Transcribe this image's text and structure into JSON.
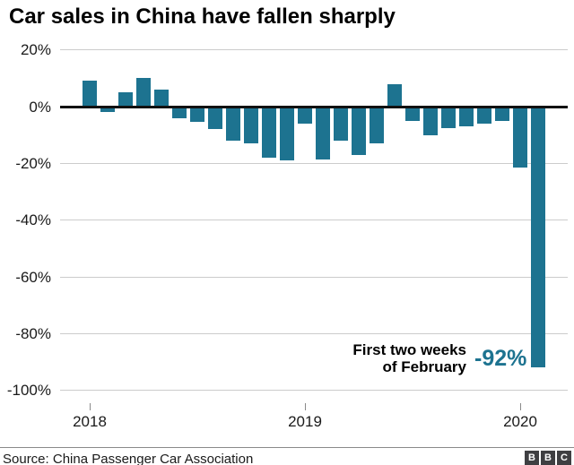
{
  "header": {
    "title": "Car sales in China have fallen sharply"
  },
  "chart_data": {
    "type": "bar",
    "title": "Car sales in China have fallen sharply",
    "unit": "percent year-on-year change",
    "bar_color": "#1d7390",
    "categories": [
      "Jan 2018",
      "Feb 2018",
      "Mar 2018",
      "Apr 2018",
      "May 2018",
      "Jun 2018",
      "Jul 2018",
      "Aug 2018",
      "Sep 2018",
      "Oct 2018",
      "Nov 2018",
      "Dec 2018",
      "Jan 2019",
      "Feb 2019",
      "Mar 2019",
      "Apr 2019",
      "May 2019",
      "Jun 2019",
      "Jul 2019",
      "Aug 2019",
      "Sep 2019",
      "Oct 2019",
      "Nov 2019",
      "Dec 2019",
      "Jan 2020",
      "First two weeks of February 2020"
    ],
    "values": [
      9,
      -2,
      5,
      10,
      6,
      -4,
      -5.5,
      -8,
      -12,
      -13,
      -18,
      -19,
      -6,
      -18.5,
      -12,
      -17,
      -13,
      8,
      -5,
      -10,
      -7.5,
      -7,
      -6,
      -5,
      -21.5,
      -92
    ],
    "ylim": [
      -100,
      20
    ],
    "grid": "horizontal",
    "yticks": [
      {
        "value": 20,
        "label": "20%"
      },
      {
        "value": 0,
        "label": "0%"
      },
      {
        "value": -20,
        "label": "-20%"
      },
      {
        "value": -40,
        "label": "-40%"
      },
      {
        "value": -60,
        "label": "-60%"
      },
      {
        "value": -80,
        "label": "-80%"
      },
      {
        "value": -100,
        "label": "-100%"
      }
    ],
    "xticks": [
      {
        "label": "2018",
        "month_index": 0
      },
      {
        "label": "2019",
        "month_index": 12
      },
      {
        "label": "2020",
        "month_index": 24
      }
    ],
    "annotation": {
      "line1": "First two weeks",
      "line2": "of February",
      "value_label": "-92%"
    }
  },
  "footer": {
    "source": "Source: China Passenger Car Association",
    "bbc": [
      "B",
      "B",
      "C"
    ]
  }
}
